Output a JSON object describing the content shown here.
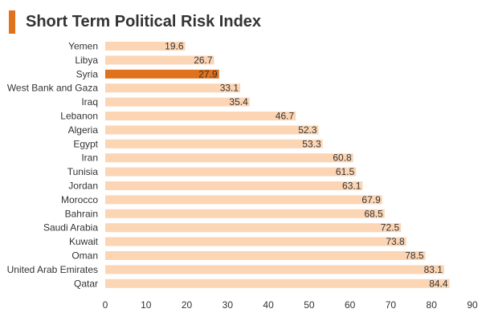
{
  "title": "Short Term Political Risk Index",
  "colors": {
    "accent": "#e0711d",
    "bar": "#fcd5b4",
    "highlight": "#e0711d"
  },
  "chart_data": {
    "type": "bar",
    "orientation": "horizontal",
    "title": "Short Term Political Risk Index",
    "xlabel": "",
    "ylabel": "",
    "xlim": [
      0,
      90
    ],
    "x_ticks": [
      0,
      10,
      20,
      30,
      40,
      50,
      60,
      70,
      80,
      90
    ],
    "highlight_category": "Syria",
    "grid": false,
    "categories": [
      "Yemen",
      "Libya",
      "Syria",
      "West Bank and Gaza",
      "Iraq",
      "Lebanon",
      "Algeria",
      "Egypt",
      "Iran",
      "Tunisia",
      "Jordan",
      "Morocco",
      "Bahrain",
      "Saudi Arabia",
      "Kuwait",
      "Oman",
      "United Arab Emirates",
      "Qatar"
    ],
    "values": [
      19.6,
      26.7,
      27.9,
      33.1,
      35.4,
      46.7,
      52.3,
      53.3,
      60.8,
      61.5,
      63.1,
      67.9,
      68.5,
      72.5,
      73.8,
      78.5,
      83.1,
      84.4
    ],
    "value_labels": [
      "19.6",
      "26.7",
      "27.9",
      "33.1",
      "35.4",
      "46.7",
      "52.3",
      "53.3",
      "60.8",
      "61.5",
      "63.1",
      "67.9",
      "68.5",
      "72.5",
      "73.8",
      "78.5",
      "83.1",
      "84.4"
    ]
  }
}
